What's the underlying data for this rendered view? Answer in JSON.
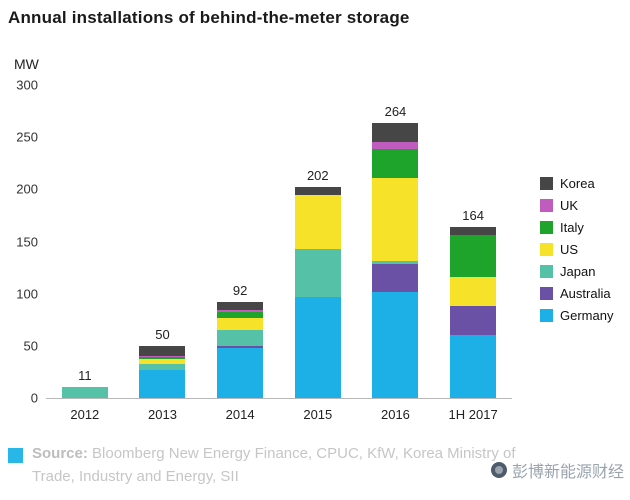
{
  "title": "Annual installations of behind-the-meter storage",
  "chart_data": {
    "type": "bar",
    "stacked": true,
    "title": "Annual installations of behind-the-meter storage",
    "unit_label": "MW",
    "categories": [
      "2012",
      "2013",
      "2014",
      "2015",
      "2016",
      "1H 2017"
    ],
    "totals": [
      11,
      50,
      92,
      202,
      264,
      164
    ],
    "ylim": [
      0,
      300
    ],
    "yticks": [
      0,
      50,
      100,
      150,
      200,
      250,
      300
    ],
    "legend_position": "right",
    "legend_order_top_to_bottom": [
      "Korea",
      "UK",
      "Italy",
      "US",
      "Japan",
      "Australia",
      "Germany"
    ],
    "series": [
      {
        "name": "Germany",
        "color": "#1cb0e6",
        "values": [
          0,
          27,
          48,
          97,
          102,
          60
        ]
      },
      {
        "name": "Australia",
        "color": "#6b51a5",
        "values": [
          0,
          0,
          2,
          0,
          26,
          28
        ]
      },
      {
        "name": "Japan",
        "color": "#55c2a7",
        "values": [
          11,
          6,
          15,
          46,
          3,
          0
        ]
      },
      {
        "name": "US",
        "color": "#f6e229",
        "values": [
          0,
          4,
          12,
          52,
          80,
          28
        ]
      },
      {
        "name": "Italy",
        "color": "#1ea32b",
        "values": [
          0,
          2,
          5,
          0,
          28,
          40
        ]
      },
      {
        "name": "UK",
        "color": "#bf5cbd",
        "values": [
          0,
          1,
          2,
          0,
          6,
          0
        ]
      },
      {
        "name": "Korea",
        "color": "#464646",
        "values": [
          0,
          10,
          8,
          7,
          19,
          8
        ]
      }
    ]
  },
  "footer": {
    "source_bold": "Source:",
    "source_rest": " Bloomberg New Energy Finance, CPUC, KfW, Korea Ministry of Trade, Industry and Energy, SII"
  },
  "watermark": "彭博新能源财经"
}
